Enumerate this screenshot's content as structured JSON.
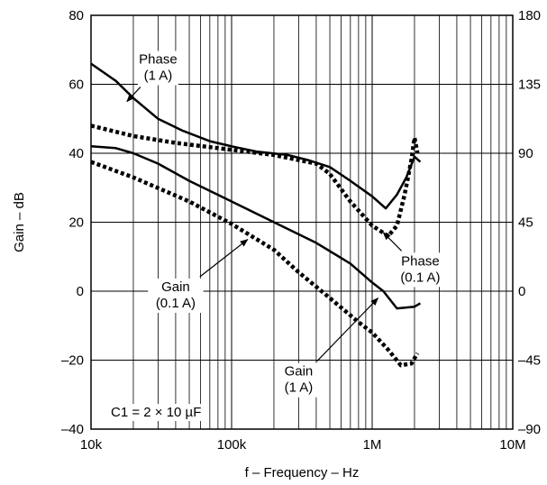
{
  "chart_data": {
    "type": "line",
    "title": "",
    "xlabel": "f – Frequency – Hz",
    "ylabel": "Gain – dB",
    "x_scale": "log",
    "xlim": [
      10000,
      10000000
    ],
    "ylim": [
      -40,
      80
    ],
    "y2lim": [
      -90,
      180
    ],
    "x_ticks": [
      {
        "value": 10000,
        "label": "10k"
      },
      {
        "value": 100000,
        "label": "100k"
      },
      {
        "value": 1000000,
        "label": "1M"
      },
      {
        "value": 10000000,
        "label": "10M"
      }
    ],
    "y_ticks": [
      {
        "value": -40,
        "label": "–40"
      },
      {
        "value": -20,
        "label": "–20"
      },
      {
        "value": 0,
        "label": "0"
      },
      {
        "value": 20,
        "label": "20"
      },
      {
        "value": 40,
        "label": "40"
      },
      {
        "value": 60,
        "label": "60"
      },
      {
        "value": 80,
        "label": "80"
      }
    ],
    "y2_ticks": [
      {
        "value": -90,
        "label": "–90"
      },
      {
        "value": -45,
        "label": "–45"
      },
      {
        "value": 0,
        "label": "0"
      },
      {
        "value": 45,
        "label": "45"
      },
      {
        "value": 90,
        "label": "90"
      },
      {
        "value": 135,
        "label": "135"
      },
      {
        "value": 180,
        "label": "180"
      }
    ],
    "grid": true,
    "annotation": "C1 = 2 × 10 µF",
    "series": [
      {
        "label_lines": [
          "Phase",
          "(1 A)"
        ],
        "axis": "y",
        "style": "solid",
        "points": [
          [
            10000,
            66
          ],
          [
            15000,
            61
          ],
          [
            20000,
            56
          ],
          [
            30000,
            50
          ],
          [
            45000,
            46.5
          ],
          [
            70000,
            43.5
          ],
          [
            100000,
            42
          ],
          [
            150000,
            40.5
          ],
          [
            250000,
            39.5
          ],
          [
            350000,
            38
          ],
          [
            500000,
            36
          ],
          [
            700000,
            32
          ],
          [
            1000000,
            27.5
          ],
          [
            1250000,
            24
          ],
          [
            1500000,
            28
          ],
          [
            1750000,
            33
          ],
          [
            2000000,
            39
          ],
          [
            2200000,
            37.5
          ]
        ]
      },
      {
        "label_lines": [
          "Phase",
          "(0.1 A)"
        ],
        "axis": "y",
        "style": "dotted",
        "points": [
          [
            10000,
            48
          ],
          [
            20000,
            45
          ],
          [
            40000,
            43
          ],
          [
            100000,
            41
          ],
          [
            200000,
            39.5
          ],
          [
            300000,
            38
          ],
          [
            400000,
            37
          ],
          [
            500000,
            34
          ],
          [
            700000,
            26
          ],
          [
            1000000,
            19
          ],
          [
            1300000,
            16
          ],
          [
            1500000,
            19
          ],
          [
            1700000,
            28
          ],
          [
            1900000,
            38
          ],
          [
            2000000,
            44.5
          ],
          [
            2100000,
            40
          ]
        ]
      },
      {
        "label_lines": [
          "Gain",
          "(1 A)"
        ],
        "axis": "y",
        "style": "solid",
        "points": [
          [
            10000,
            42
          ],
          [
            15000,
            41.5
          ],
          [
            20000,
            40
          ],
          [
            30000,
            37
          ],
          [
            50000,
            32
          ],
          [
            100000,
            26
          ],
          [
            200000,
            20
          ],
          [
            400000,
            14
          ],
          [
            700000,
            8
          ],
          [
            1000000,
            2.5
          ],
          [
            1200000,
            0
          ],
          [
            1500000,
            -5
          ],
          [
            2000000,
            -4.5
          ],
          [
            2200000,
            -3.5
          ]
        ]
      },
      {
        "label_lines": [
          "Gain",
          "(0.1 A)"
        ],
        "axis": "y",
        "style": "dotted",
        "points": [
          [
            10000,
            37.5
          ],
          [
            20000,
            33
          ],
          [
            50000,
            26
          ],
          [
            100000,
            19.5
          ],
          [
            200000,
            12
          ],
          [
            300000,
            5.5
          ],
          [
            500000,
            -2
          ],
          [
            800000,
            -9
          ],
          [
            1000000,
            -12
          ],
          [
            1300000,
            -17
          ],
          [
            1600000,
            -21.5
          ],
          [
            1900000,
            -21
          ],
          [
            2100000,
            -18
          ]
        ]
      }
    ],
    "label_positions": [
      {
        "series": 0,
        "text_at": [
          30000,
          66
        ],
        "arrow_to": [
          18000,
          55
        ]
      },
      {
        "series": 1,
        "text_at": [
          2200000,
          7.5
        ],
        "arrow_to": [
          1200000,
          17
        ]
      },
      {
        "series": 2,
        "text_at": [
          300000,
          -24.5
        ],
        "arrow_to": [
          1100000,
          -2
        ]
      },
      {
        "series": 3,
        "text_at": [
          40000,
          0
        ],
        "arrow_to": [
          130000,
          15
        ]
      }
    ]
  }
}
